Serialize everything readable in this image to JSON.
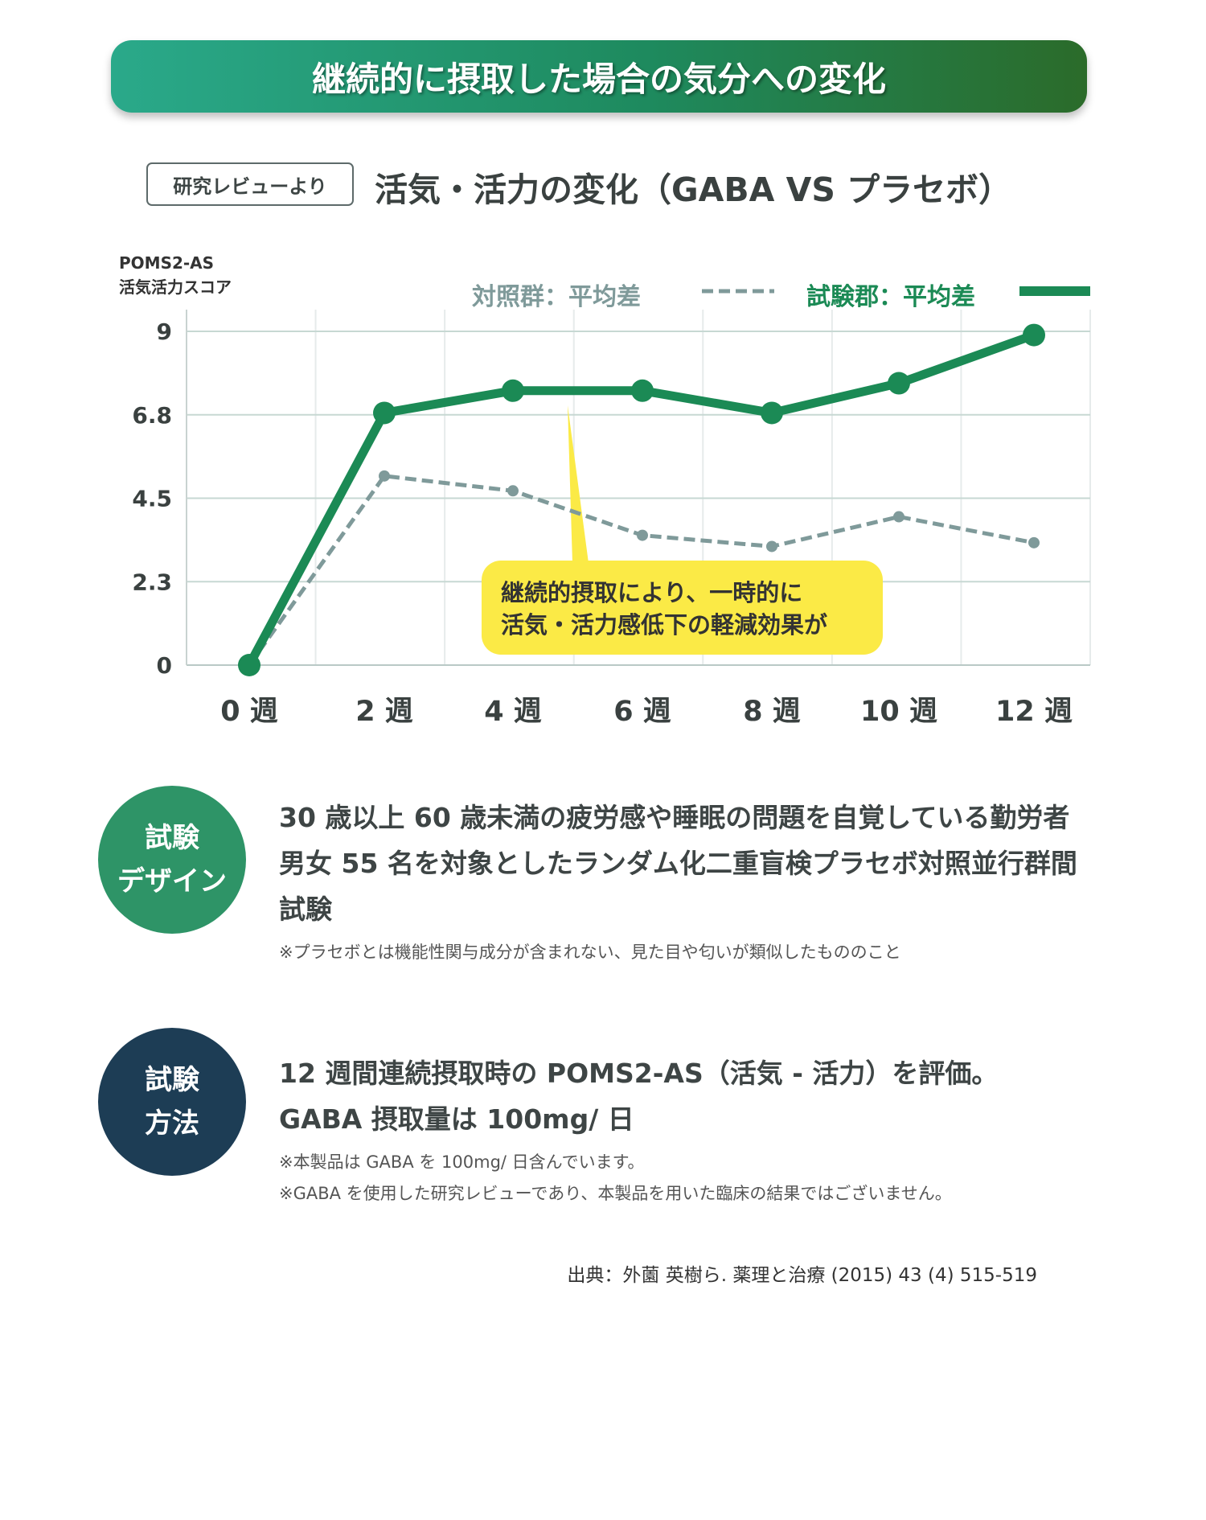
{
  "header": {
    "title": "継続的に摂取した場合の気分への変化"
  },
  "subheader": {
    "badge": "研究レビューより",
    "heading": "活気・活力の変化（GABA VS プラセボ）"
  },
  "chart_data": {
    "type": "line",
    "title": "活気・活力の変化（GABA VS プラセボ）",
    "ylabel_line1": "POMS2-AS",
    "ylabel_line2": "活気活力スコア",
    "categories": [
      "0 週",
      "2 週",
      "4 週",
      "6 週",
      "8 週",
      "10 週",
      "12 週"
    ],
    "yticks": [
      "9",
      "6.8",
      "4.5",
      "2.3",
      "0"
    ],
    "ylim": [
      0,
      9
    ],
    "grid": true,
    "legend_position": "top-right",
    "series": [
      {
        "name": "対照群：平均差",
        "style": "dashed",
        "color": "#7f9a9a",
        "values": [
          0,
          5.1,
          4.7,
          3.5,
          3.2,
          4.0,
          3.3
        ]
      },
      {
        "name": "試験郡：平均差",
        "style": "solid",
        "color": "#1b8a55",
        "values": [
          0,
          6.8,
          7.4,
          7.4,
          6.8,
          7.6,
          8.9
        ]
      }
    ],
    "annotation": {
      "line1": "継続的摂取により、一時的に",
      "line2": "活気・活力感低下の軽減効果が",
      "color": "#fbea46"
    }
  },
  "design": {
    "badge_line1": "試験",
    "badge_line2": "デザイン",
    "badge_color": "#2e9467",
    "lines": [
      "30 歳以上 60 歳未満の疲労感や睡眠の問題を自覚している勤労者",
      "男女 55 名を対象としたランダム化二重盲検プラセボ対照並行群間",
      "試験"
    ],
    "note": "※プラセボとは機能性関与成分が含まれない、見た目や匂いが類似したもののこと"
  },
  "method": {
    "badge_line1": "試験",
    "badge_line2": "方法",
    "badge_color": "#1d3d55",
    "lines": [
      "12 週間連続摂取時の POMS2-AS（活気 - 活力）を評価。",
      "GABA 摂取量は 100mg/ 日"
    ],
    "notes": [
      "※本製品は GABA を 100mg/ 日含んでいます。",
      "※GABA を使用した研究レビューであり、本製品を用いた臨床の結果ではございません。"
    ]
  },
  "source": "出典：外薗 英樹ら. 薬理と治療 (2015) 43 (4) 515-519"
}
